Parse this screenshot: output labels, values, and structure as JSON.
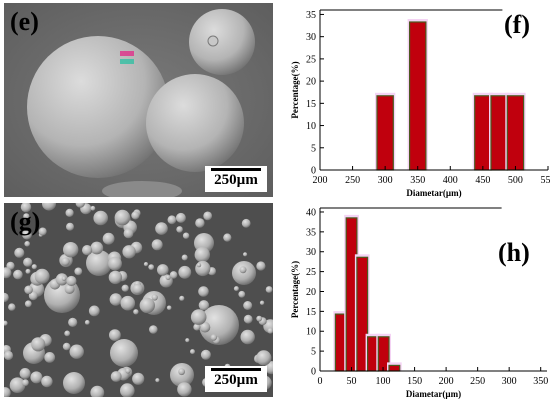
{
  "panels": {
    "e": {
      "letter": "(e)",
      "scale_label": "250µm"
    },
    "g": {
      "letter": "(g)",
      "scale_label": "250µm"
    },
    "f": {
      "letter": "(f)"
    },
    "h": {
      "letter": "(h)"
    }
  },
  "colors": {
    "bar_fill": "#c0000d",
    "bar_stroke": "#4a5a1e",
    "bar_halo": "#f4d3f4",
    "sem_bg": "#6e6e6e"
  },
  "chart_data": [
    {
      "id": "f",
      "type": "bar",
      "ylabel": "Percentage(%)",
      "xlabel": "Diametar(µm)",
      "xlim": [
        200,
        550
      ],
      "ylim": [
        0,
        36
      ],
      "bin_width": 25,
      "xticks": [
        200,
        250,
        300,
        350,
        400,
        450,
        500,
        550
      ],
      "yticks": [
        0,
        5,
        10,
        15,
        20,
        25,
        30,
        35
      ],
      "bars": [
        {
          "x": 300,
          "value": 16.7
        },
        {
          "x": 350,
          "value": 33.3
        },
        {
          "x": 450,
          "value": 16.7
        },
        {
          "x": 475,
          "value": 16.7
        },
        {
          "x": 500,
          "value": 16.7
        }
      ],
      "grid": false
    },
    {
      "id": "h",
      "type": "bar",
      "ylabel": "Percentage(%)",
      "xlabel": "Diametar(µm)",
      "xlim": [
        0,
        360
      ],
      "ylim": [
        0,
        41
      ],
      "bin_width": 17,
      "xticks": [
        0,
        50,
        100,
        150,
        200,
        250,
        300,
        350
      ],
      "yticks": [
        0,
        5,
        10,
        15,
        20,
        25,
        30,
        35,
        40
      ],
      "bars": [
        {
          "x": 33,
          "value": 14.3
        },
        {
          "x": 50,
          "value": 38.5
        },
        {
          "x": 67,
          "value": 28.6
        },
        {
          "x": 84,
          "value": 8.6
        },
        {
          "x": 101,
          "value": 8.6
        },
        {
          "x": 118,
          "value": 1.4
        }
      ],
      "grid": false
    }
  ]
}
